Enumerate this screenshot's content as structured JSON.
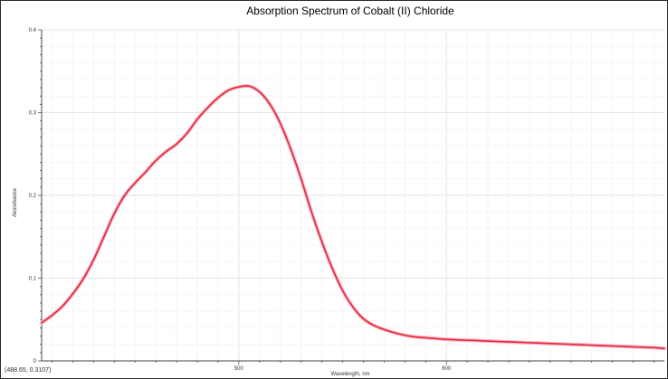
{
  "chart_data": {
    "type": "line",
    "title": "Absorption Spectrum of Cobalt (II) Chloride",
    "xlabel": "Wavelength, nm",
    "ylabel": "Absorbance",
    "xlim": [
      405,
      705
    ],
    "ylim": [
      0,
      0.4
    ],
    "x_ticks": [
      500,
      600
    ],
    "y_ticks": [
      0,
      0.1,
      0.2,
      0.3,
      0.4
    ],
    "x_tick_labels": [
      "500",
      "600"
    ],
    "y_tick_labels": [
      "0",
      "0.1",
      "0.2",
      "0.3",
      "0.4"
    ],
    "grid": true,
    "legend": "none",
    "series": [
      {
        "color": "#e8243c",
        "x": [
          405,
          410,
          415,
          420,
          425,
          430,
          435,
          440,
          445,
          450,
          455,
          460,
          465,
          470,
          475,
          480,
          485,
          490,
          495,
          500,
          505,
          510,
          515,
          520,
          525,
          530,
          535,
          540,
          545,
          550,
          555,
          560,
          565,
          570,
          575,
          580,
          585,
          590,
          595,
          600,
          610,
          620,
          630,
          640,
          650,
          660,
          670,
          680,
          690,
          700,
          705
        ],
        "y": [
          0.046,
          0.055,
          0.066,
          0.081,
          0.099,
          0.122,
          0.15,
          0.178,
          0.2,
          0.215,
          0.228,
          0.242,
          0.253,
          0.262,
          0.275,
          0.292,
          0.306,
          0.318,
          0.327,
          0.331,
          0.332,
          0.325,
          0.31,
          0.287,
          0.256,
          0.22,
          0.18,
          0.144,
          0.112,
          0.085,
          0.065,
          0.051,
          0.043,
          0.038,
          0.034,
          0.031,
          0.029,
          0.028,
          0.027,
          0.026,
          0.025,
          0.024,
          0.023,
          0.022,
          0.021,
          0.02,
          0.019,
          0.018,
          0.017,
          0.016,
          0.015
        ]
      }
    ]
  },
  "readout": {
    "text": "(488.65, 0.3107)"
  }
}
